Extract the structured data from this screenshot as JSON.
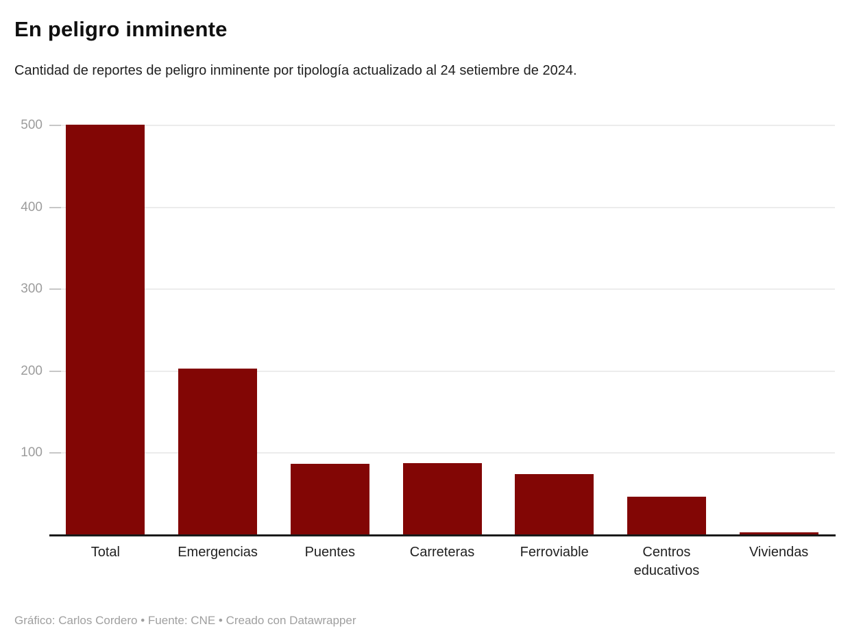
{
  "chart_data": {
    "type": "bar",
    "title": "En peligro inminente",
    "subtitle": "Cantidad de reportes de peligro inminente por tipología actualizado al 24 setiembre de 2024.",
    "categories": [
      "Total",
      "Emergencias",
      "Puentes",
      "Carreteras",
      "Ferroviable",
      "Centros educativos",
      "Viviendas"
    ],
    "values": [
      501,
      203,
      87,
      88,
      74,
      47,
      2
    ],
    "xlabel": "",
    "ylabel": "",
    "ylim": [
      0,
      500
    ],
    "yticks": [
      100,
      200,
      300,
      400,
      500
    ],
    "grid": true,
    "legend_position": "none",
    "bar_color": "#820605",
    "axis_line_color": "#1a1a1a",
    "gridline_color": "#ececec",
    "tick_label_color": "#9c9c9c"
  },
  "footer": {
    "text": "Gráfico: Carlos Cordero • Fuente: CNE • Creado con Datawrapper"
  }
}
